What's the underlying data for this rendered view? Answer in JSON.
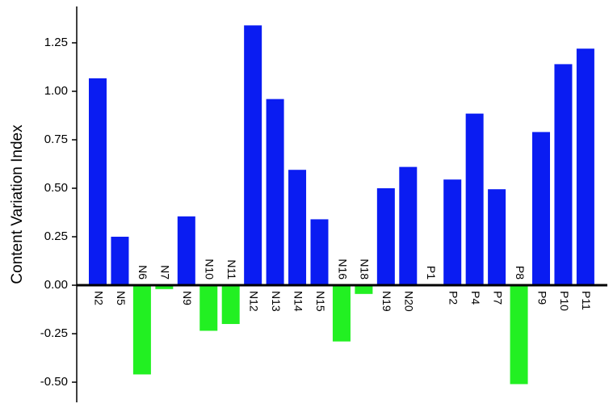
{
  "chart_data": {
    "type": "bar",
    "y_label": "Content Variation Index",
    "categories": [
      "N2",
      "N5",
      "N6",
      "N7",
      "N9",
      "N10",
      "N11",
      "N12",
      "N13",
      "N14",
      "N15",
      "N16",
      "N18",
      "N19",
      "N20",
      "P1",
      "P2",
      "P4",
      "P7",
      "P8",
      "P9",
      "P10",
      "P11"
    ],
    "values": [
      1.067,
      0.25,
      -0.46,
      -0.02,
      0.355,
      -0.235,
      -0.2,
      1.34,
      0.96,
      0.595,
      0.34,
      -0.29,
      -0.045,
      0.5,
      0.61,
      0,
      0.545,
      0.885,
      0.495,
      -0.51,
      0.79,
      1.14,
      1.22
    ],
    "colors": {
      "positive": "#0a1cf2",
      "negative": "#22f022"
    },
    "ylim": [
      -0.604,
      1.4375
    ],
    "yticks": [
      {
        "value": -0.5,
        "label": "-0.50"
      },
      -0.25,
      {
        "value": 0,
        "label": "0.00"
      },
      0.25,
      {
        "value": 0.5,
        "label": "0.50"
      },
      0.75,
      {
        "value": 1,
        "label": "1.00"
      },
      1.25
    ]
  }
}
